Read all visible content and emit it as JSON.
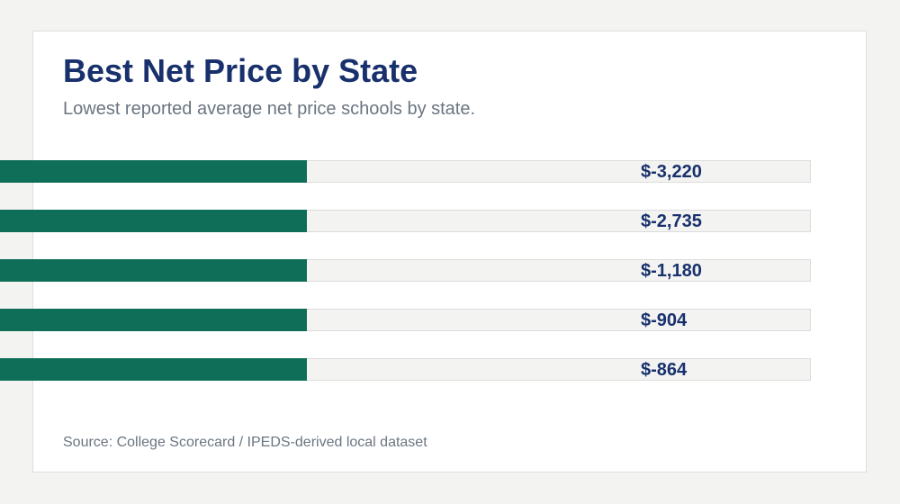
{
  "header": {
    "title": "Best Net Price by State",
    "subtitle": "Lowest reported average net price schools by state."
  },
  "footer": {
    "source": "Source: College Scorecard / IPEDS-derived local dataset"
  },
  "colors": {
    "bar": "#0f6e57",
    "track": "#f3f3f2",
    "track_border": "#dcdcdc",
    "value_label": "#18306c"
  },
  "chart_data": {
    "type": "bar",
    "orientation": "horizontal",
    "title": "Best Net Price by State",
    "subtitle": "Lowest reported average net price schools by state.",
    "categories": [
      "",
      "",
      "",
      "",
      ""
    ],
    "values": [
      -3220,
      -2735,
      -1180,
      -904,
      -864
    ],
    "value_labels": [
      "$-3,220",
      "$-2,735",
      "$-1,180",
      "$-904",
      "$-864"
    ],
    "xlabel": "",
    "ylabel": "",
    "grid": false,
    "legend": "none"
  }
}
